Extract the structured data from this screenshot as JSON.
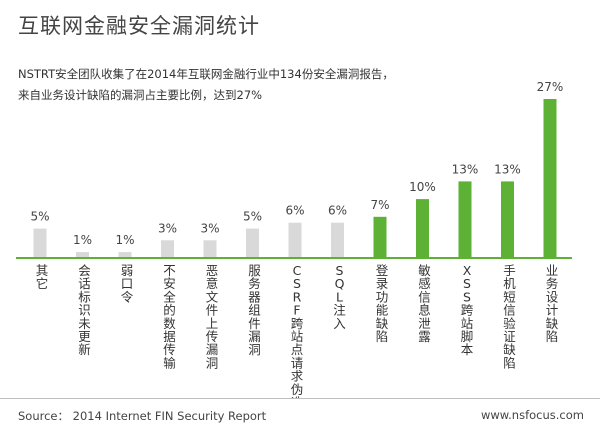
{
  "title": "互联网金融安全漏洞统计",
  "subtitle_lines": [
    "NSTRT安全团队收集了在2014年互联网金融行业中134份安全漏洞报告，",
    "来自业务设计缺陷的漏洞占主要比例，达到27%"
  ],
  "source": "Source： 2014 Internet FIN Security Report",
  "website": "www.nsfocus.com",
  "chart_data": {
    "type": "bar",
    "title": "互联网金融安全漏洞统计",
    "xlabel": "",
    "ylabel": "",
    "ylim": [
      0,
      27
    ],
    "grid": false,
    "legend": "none",
    "unit": "%",
    "categories": [
      "其它",
      "会话标识未更新",
      "弱口令",
      "不安全的数据传输",
      "恶意文件上传漏洞",
      "服务器组件漏洞",
      "CSRF跨站点请求伪造",
      "SQL注入",
      "登录功能缺陷",
      "敏感信息泄露",
      "XSS跨站脚本",
      "手机短信验证缺陷",
      "业务设计缺陷"
    ],
    "values": [
      5,
      1,
      1,
      3,
      3,
      5,
      6,
      6,
      7,
      10,
      13,
      13,
      27
    ],
    "value_labels": [
      "5%",
      "1%",
      "1%",
      "3%",
      "3%",
      "5%",
      "6%",
      "6%",
      "7%",
      "10%",
      "13%",
      "13%",
      "27%"
    ],
    "highlight_from_index": 8,
    "colors": {
      "gray": "#d9d9d9",
      "green": "#5db135",
      "axis": "#5db135"
    }
  }
}
